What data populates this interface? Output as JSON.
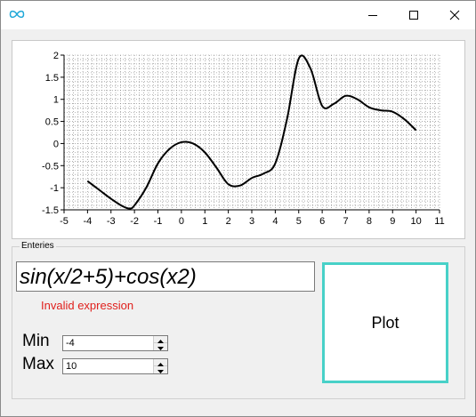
{
  "window": {
    "icon": "infinity-icon",
    "controls": [
      "minimize-icon",
      "maximize-icon",
      "close-icon"
    ]
  },
  "chart_data": {
    "type": "line",
    "xlim": [
      -5,
      11
    ],
    "ylim": [
      -1.5,
      2
    ],
    "xticks": [
      "-5",
      "-4",
      "-3",
      "-2",
      "-1",
      "0",
      "1",
      "2",
      "3",
      "4",
      "5",
      "6",
      "7",
      "8",
      "9",
      "10",
      "11"
    ],
    "yticks": [
      "2",
      "1.5",
      "1",
      "0.5",
      "0",
      "-0.5",
      "-1",
      "-1.5"
    ],
    "grid": true,
    "series": [
      {
        "color": "#000000",
        "x": [
          -4,
          -3.5,
          -3,
          -2.5,
          -2.2,
          -2,
          -1.5,
          -1,
          -0.5,
          0,
          0.5,
          1,
          1.5,
          2,
          2.5,
          3,
          3.5,
          4,
          4.5,
          5,
          5.5,
          6,
          6.5,
          7,
          7.5,
          8,
          8.5,
          9,
          9.5,
          10
        ],
        "y": [
          -0.85,
          -1.05,
          -1.25,
          -1.42,
          -1.47,
          -1.4,
          -1.0,
          -0.45,
          -0.12,
          0.03,
          0.0,
          -0.2,
          -0.55,
          -0.92,
          -0.95,
          -0.78,
          -0.68,
          -0.45,
          0.55,
          1.92,
          1.7,
          0.85,
          0.9,
          1.08,
          1.0,
          0.82,
          0.75,
          0.72,
          0.55,
          0.3
        ]
      }
    ]
  },
  "entries": {
    "caption": "Enteries",
    "expression": "sin(x/2+5)+cos(x2)",
    "error": "Invalid expression",
    "min_label": "Min",
    "min_value": "-4",
    "max_label": "Max",
    "max_value": "10",
    "plot_label": "Plot"
  },
  "colors": {
    "plot_button_border": "#48d1c8",
    "error_text": "#e0201d",
    "app_icon": "#1fa8d8"
  }
}
